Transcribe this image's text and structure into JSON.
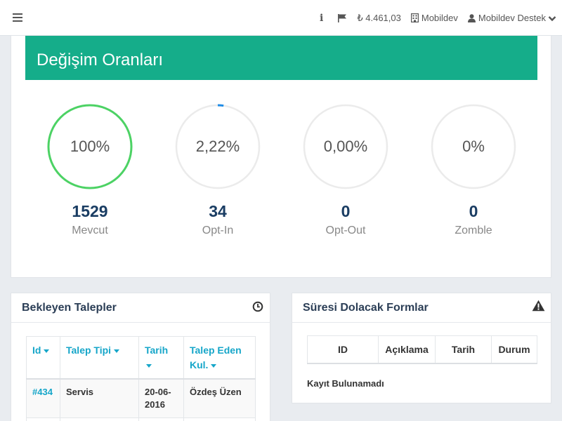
{
  "topbar": {
    "balance": "₺ 4.461,03",
    "company": "Mobildev",
    "user": "Mobildev Destek"
  },
  "rates": {
    "title": "Değişim Oranları",
    "stats": [
      {
        "percent_text": "100%",
        "fraction": 1.0,
        "color": "#4cd264",
        "count": "1529",
        "label": "Mevcut"
      },
      {
        "percent_text": "2,22%",
        "fraction": 0.0222,
        "color": "#1f8ce6",
        "count": "34",
        "label": "Opt-In"
      },
      {
        "percent_text": "0,00%",
        "fraction": 0,
        "color": "#1f8ce6",
        "count": "0",
        "label": "Opt-Out"
      },
      {
        "percent_text": "0%",
        "fraction": 0,
        "color": "#1f8ce6",
        "count": "0",
        "label": "Zomble"
      }
    ],
    "track_color": "#ebebeb"
  },
  "pending": {
    "title": "Bekleyen Talepler",
    "columns": [
      "Id",
      "Talep Tipi",
      "Tarih",
      "Talep Eden Kul."
    ],
    "rows": [
      {
        "id": "#434",
        "type": "Servis",
        "date": "20-06-2016",
        "requester": "Özdeş Üzen"
      }
    ]
  },
  "forms": {
    "title": "Süresi Dolacak Formlar",
    "columns": [
      "ID",
      "Açıklama",
      "Tarih",
      "Durum"
    ],
    "empty": "Kayıt Bulunamadı"
  },
  "colors": {
    "header_green": "#15ad8a",
    "link_blue": "#16a6c9",
    "count_navy": "#1a3d63"
  }
}
